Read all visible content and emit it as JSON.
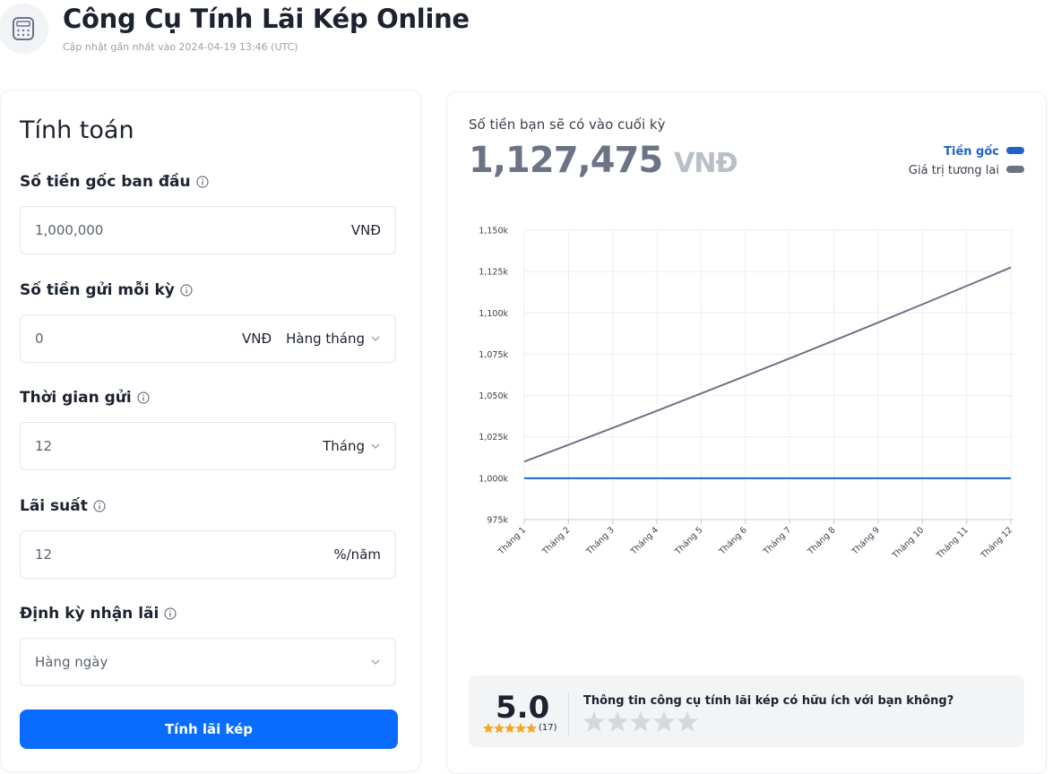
{
  "header": {
    "title": "Công Cụ Tính Lãi Kép Online",
    "updated": "Cập nhật gần nhất vào 2024-04-19 13:46 (UTC)"
  },
  "form": {
    "title": "Tính toán",
    "fields": [
      {
        "label": "Số tiền gốc ban đầu",
        "value": "1,000,000",
        "unit": "VNĐ"
      },
      {
        "label": "Số tiền gửi mỗi kỳ",
        "value": "0",
        "unit": "VNĐ",
        "option": "Hàng tháng"
      },
      {
        "label": "Thời gian gửi",
        "value": "12",
        "option": "Tháng"
      },
      {
        "label": "Lãi suất",
        "value": "12",
        "unit": "%/năm"
      },
      {
        "label": "Định kỳ nhận lãi",
        "option": "Hàng ngày"
      }
    ],
    "button": "Tính lãi kép"
  },
  "result": {
    "label": "Số tiền bạn sẽ có vào cuối kỳ",
    "amount": "1,127,475",
    "currency": "VNĐ"
  },
  "chart_data": {
    "type": "line",
    "categories": [
      "Tháng 1",
      "Tháng 2",
      "Tháng 3",
      "Tháng 4",
      "Tháng 5",
      "Tháng 6",
      "Tháng 7",
      "Tháng 8",
      "Tháng 9",
      "Tháng 10",
      "Tháng 11",
      "Tháng 12"
    ],
    "series": [
      {
        "name": "Tiền gốc",
        "color": "#1f63c6",
        "values": [
          1000000,
          1000000,
          1000000,
          1000000,
          1000000,
          1000000,
          1000000,
          1000000,
          1000000,
          1000000,
          1000000,
          1000000
        ]
      },
      {
        "name": "Giá trị tương lai",
        "color": "#6b7385",
        "values": [
          1010050,
          1020200,
          1030450,
          1040810,
          1051270,
          1061830,
          1072500,
          1083280,
          1094170,
          1105170,
          1116280,
          1127475
        ]
      }
    ],
    "ylim": [
      975000,
      1150000
    ],
    "yticks": [
      {
        "value": 975000,
        "label": "975k"
      },
      {
        "value": 1000000,
        "label": "1,000k"
      },
      {
        "value": 1025000,
        "label": "1,025k"
      },
      {
        "value": 1050000,
        "label": "1,050k"
      },
      {
        "value": 1075000,
        "label": "1,075k"
      },
      {
        "value": 1100000,
        "label": "1,100k"
      },
      {
        "value": 1125000,
        "label": "1,125k"
      },
      {
        "value": 1150000,
        "label": "1,150k"
      }
    ],
    "grid": true,
    "legend": "top-right"
  },
  "rating": {
    "score": "5.0",
    "count": "(17)",
    "question": "Thông tin công cụ tính lãi kép có hữu ích với bạn không?"
  }
}
